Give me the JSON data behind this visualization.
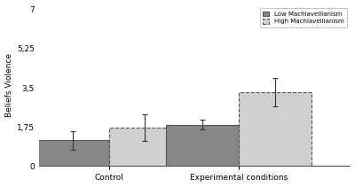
{
  "categories": [
    "Control",
    "Experimental conditions"
  ],
  "low_mach_values": [
    1.15,
    1.85
  ],
  "high_mach_values": [
    1.72,
    3.3
  ],
  "low_mach_errors": [
    0.42,
    0.22
  ],
  "high_mach_errors": [
    0.58,
    0.62
  ],
  "low_mach_color": "#878787",
  "high_mach_color": "#d0d0d0",
  "ylabel": "Beliefs Violence",
  "yticks": [
    0,
    1.75,
    3.5,
    5.25,
    7
  ],
  "ytick_labels": [
    "0",
    "1,75",
    "3,5",
    "5,25",
    "7"
  ],
  "ylim": [
    0,
    7.2
  ],
  "legend_labels": [
    "Low Machiavellianism",
    "High Machiavellianism"
  ],
  "bar_width": 0.28,
  "background_color": "#ffffff",
  "x_positions": [
    0.22,
    0.72
  ],
  "xlim": [
    -0.05,
    1.15
  ],
  "figsize": [
    4.0,
    2.11
  ],
  "dpi": 100
}
